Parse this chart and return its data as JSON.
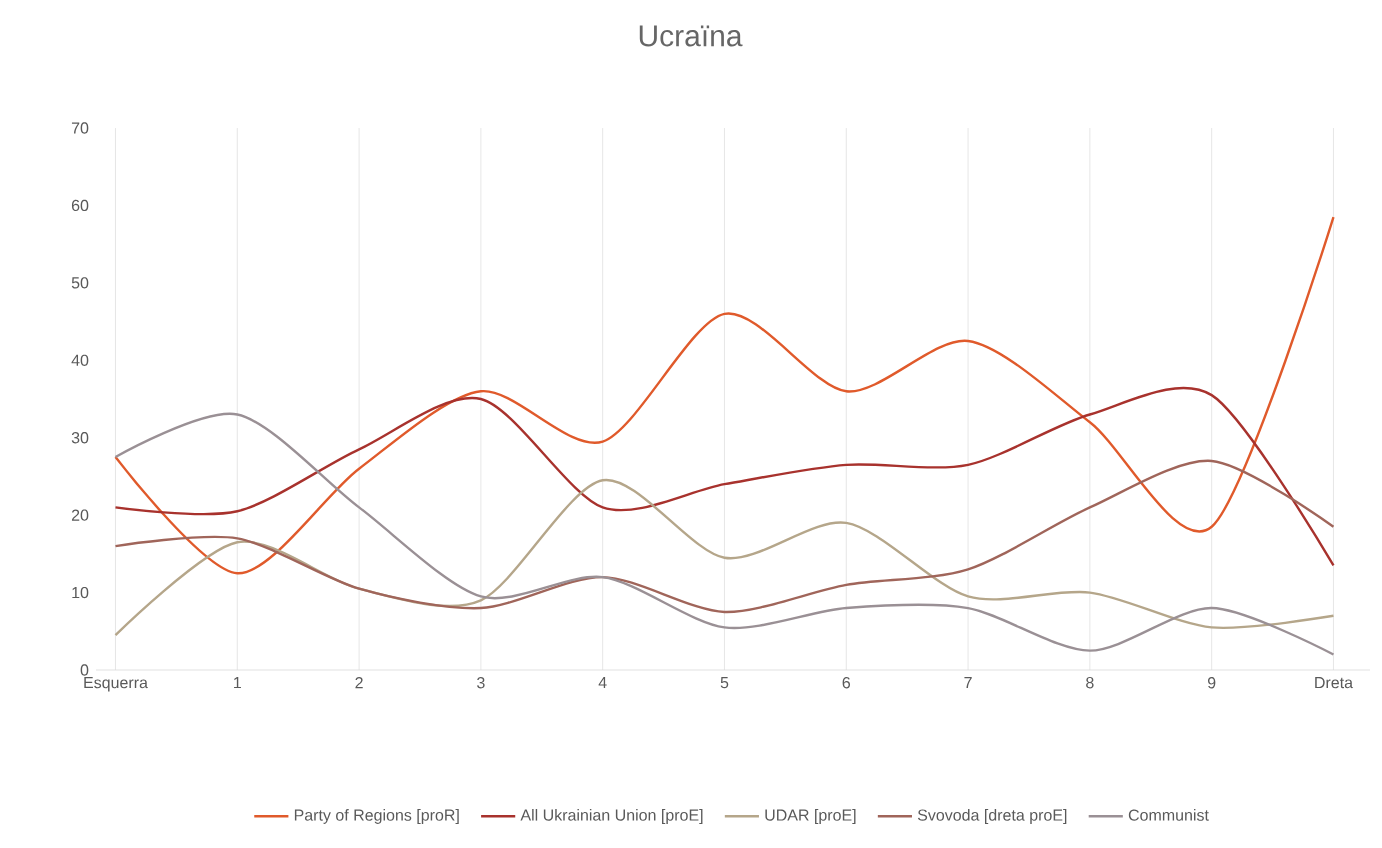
{
  "chart_data": {
    "type": "line",
    "title": "Ucraïna",
    "categories": [
      "Esquerra",
      "1",
      "2",
      "3",
      "4",
      "5",
      "6",
      "7",
      "8",
      "9",
      "Dreta"
    ],
    "ylim": [
      0,
      70
    ],
    "yticks": [
      0,
      10,
      20,
      30,
      40,
      50,
      60,
      70
    ],
    "grid": "x",
    "legend": "bottom",
    "marker": "none",
    "line_style": "solid",
    "series": [
      {
        "name": "Party of Regions [proR]",
        "color": "#e05a2b",
        "values": [
          27.5,
          12.5,
          26,
          36,
          29.5,
          46,
          36,
          42.5,
          32,
          18.5,
          58.5
        ]
      },
      {
        "name": "All Ukrainian Union [proE]",
        "color": "#a8322d",
        "values": [
          21,
          20.5,
          28.5,
          35,
          21,
          24,
          26.5,
          26.5,
          33,
          35.5,
          13.5
        ]
      },
      {
        "name": "UDAR [proE]",
        "color": "#b5a68a",
        "values": [
          4.5,
          16.5,
          10.5,
          9,
          24.5,
          14.5,
          19,
          9.5,
          10,
          5.5,
          7
        ]
      },
      {
        "name": "Svovoda [dreta proE]",
        "color": "#a0655a",
        "values": [
          16,
          17,
          10.5,
          8,
          12,
          7.5,
          11,
          13,
          21,
          27,
          18.5
        ]
      },
      {
        "name": "Communist",
        "color": "#9a9095",
        "values": [
          27.5,
          33,
          21,
          9.5,
          12,
          5.5,
          8,
          8,
          2.5,
          8,
          2
        ]
      }
    ]
  }
}
